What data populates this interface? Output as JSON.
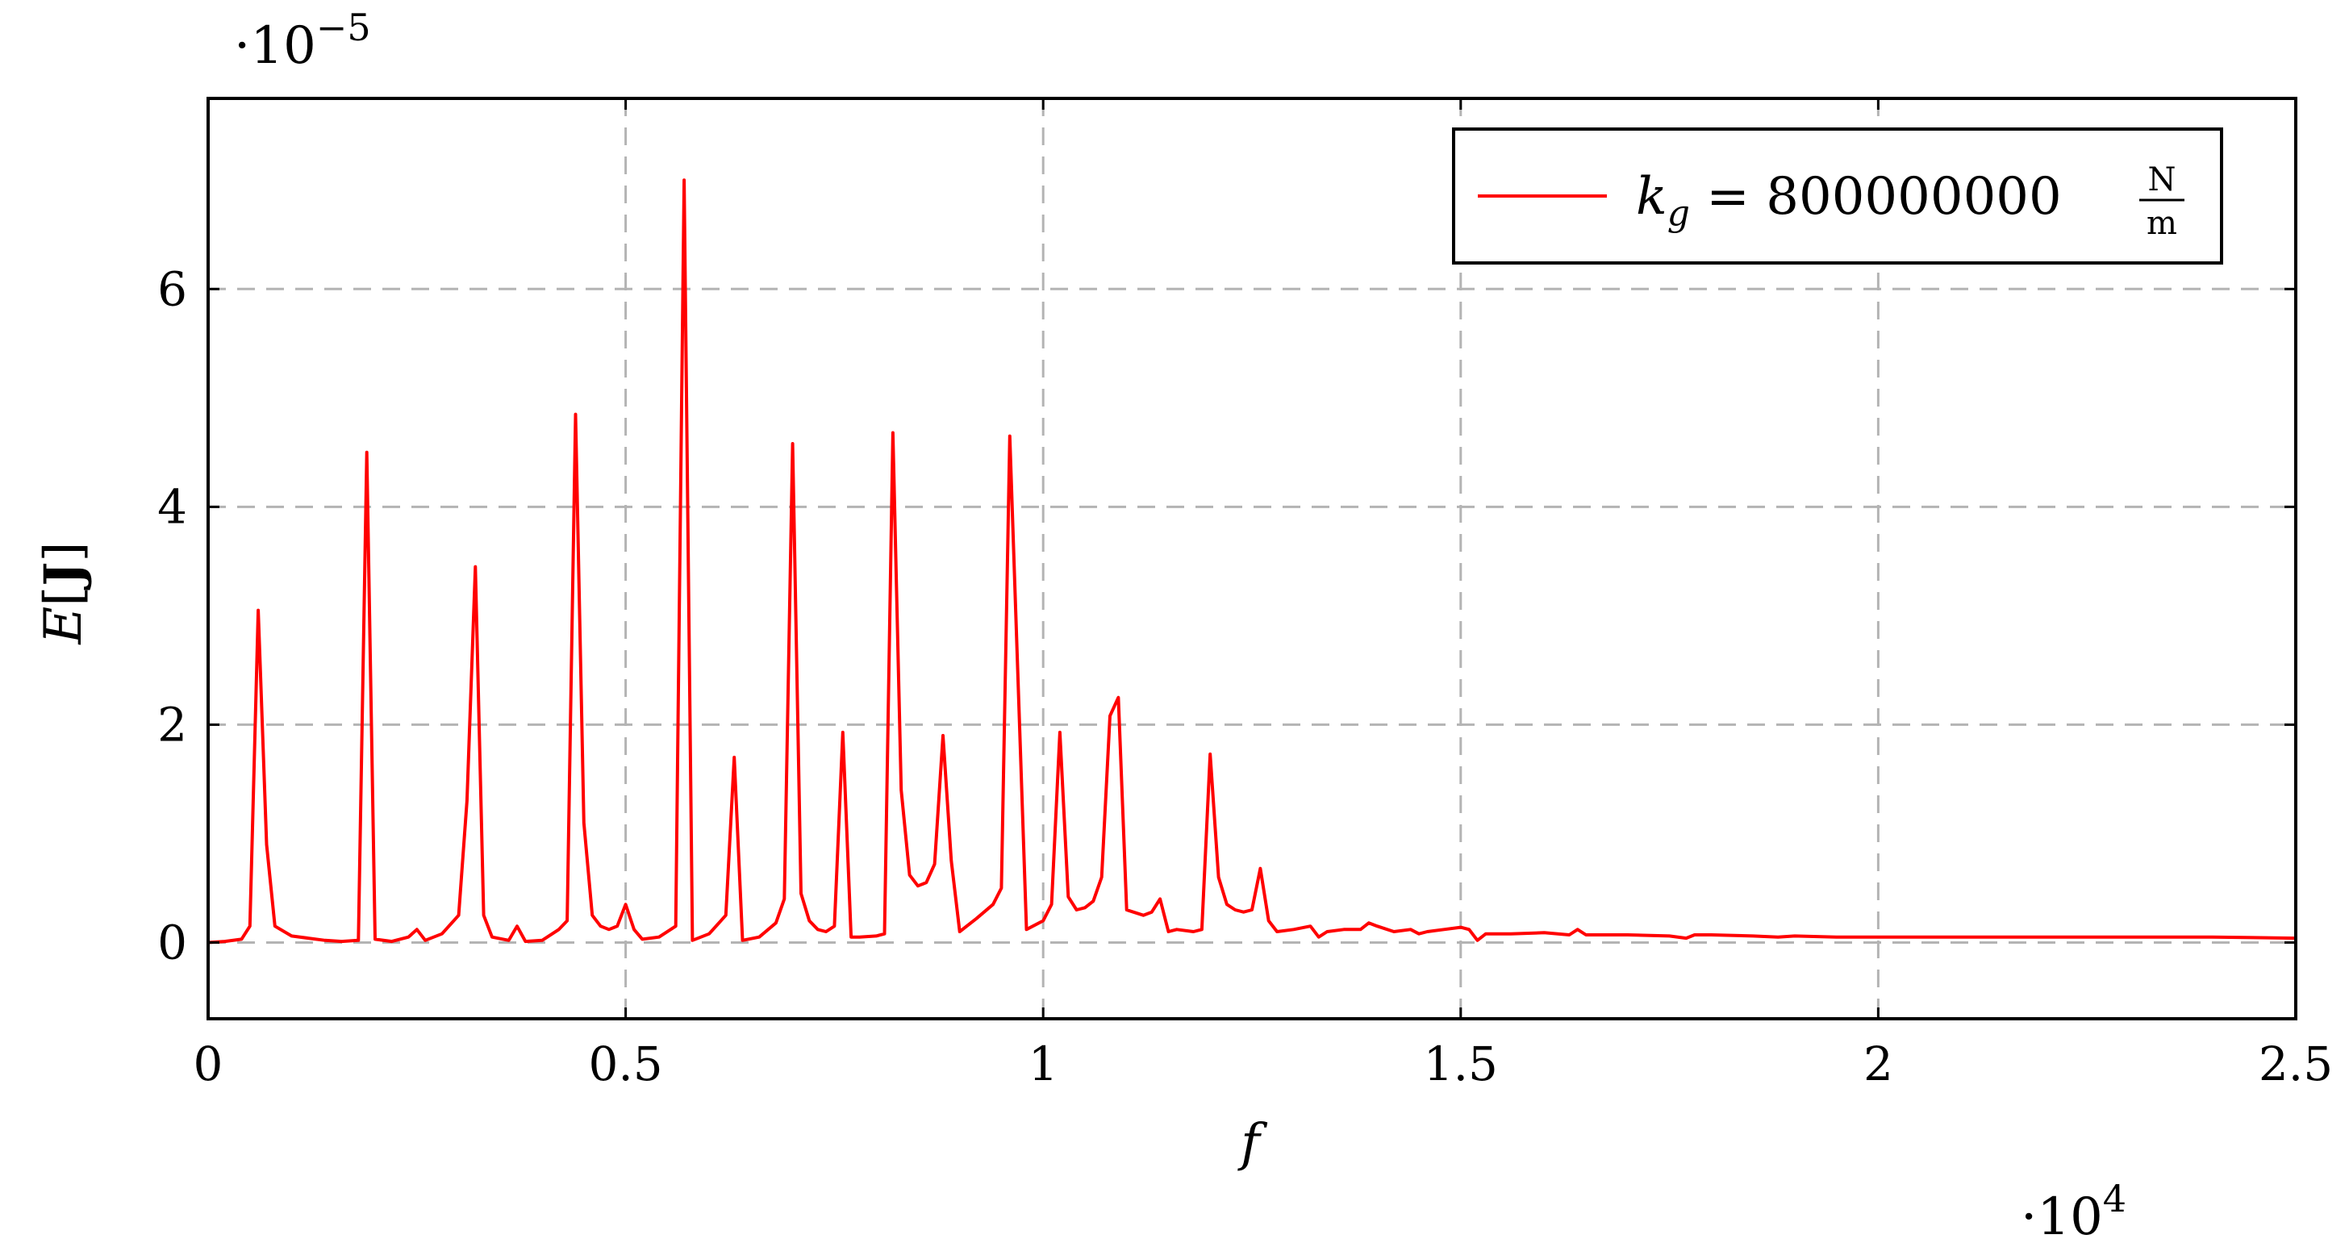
{
  "chart_data": {
    "type": "line",
    "title": "",
    "xlabel": "f",
    "ylabel": "E[J]",
    "x_scale_label": "·10^4",
    "y_scale_label": "·10^−5",
    "xlim": [
      0,
      2.5
    ],
    "ylim": [
      -0.7,
      7.75
    ],
    "x_ticks": [
      0,
      0.5,
      1,
      1.5,
      2,
      2.5
    ],
    "x_tick_labels": [
      "0",
      "0.5",
      "1",
      "1.5",
      "2",
      "2.5"
    ],
    "y_ticks": [
      0,
      2,
      4,
      6
    ],
    "y_tick_labels": [
      "0",
      "2",
      "4",
      "6"
    ],
    "grid": true,
    "legend_position": "top-right",
    "colors": {
      "series": "#ff0000",
      "grid": "#b4b4b4",
      "frame": "#000000"
    },
    "series": [
      {
        "name": "k_g = 800000000 N/m",
        "legend": {
          "lhs": "k",
          "sub": "g",
          "rhs": " = 800000000",
          "num": "N",
          "den": "m"
        },
        "x": [
          0,
          0.02,
          0.04,
          0.05,
          0.06,
          0.07,
          0.08,
          0.1,
          0.12,
          0.14,
          0.16,
          0.18,
          0.19,
          0.2,
          0.22,
          0.24,
          0.25,
          0.26,
          0.28,
          0.3,
          0.31,
          0.32,
          0.33,
          0.34,
          0.36,
          0.37,
          0.38,
          0.4,
          0.42,
          0.43,
          0.44,
          0.45,
          0.46,
          0.47,
          0.48,
          0.49,
          0.5,
          0.51,
          0.52,
          0.54,
          0.56,
          0.57,
          0.58,
          0.6,
          0.62,
          0.63,
          0.64,
          0.66,
          0.68,
          0.69,
          0.7,
          0.71,
          0.72,
          0.73,
          0.74,
          0.75,
          0.76,
          0.77,
          0.78,
          0.8,
          0.81,
          0.82,
          0.83,
          0.84,
          0.85,
          0.86,
          0.87,
          0.88,
          0.89,
          0.9,
          0.92,
          0.94,
          0.95,
          0.96,
          0.98,
          1.0,
          1.01,
          1.02,
          1.03,
          1.04,
          1.05,
          1.06,
          1.07,
          1.08,
          1.09,
          1.1,
          1.12,
          1.13,
          1.14,
          1.15,
          1.16,
          1.18,
          1.19,
          1.2,
          1.21,
          1.22,
          1.23,
          1.24,
          1.25,
          1.26,
          1.27,
          1.28,
          1.3,
          1.32,
          1.33,
          1.34,
          1.36,
          1.38,
          1.39,
          1.4,
          1.42,
          1.44,
          1.45,
          1.46,
          1.48,
          1.5,
          1.51,
          1.52,
          1.53,
          1.56,
          1.6,
          1.63,
          1.64,
          1.65,
          1.7,
          1.75,
          1.77,
          1.78,
          1.8,
          1.85,
          1.88,
          1.9,
          1.95,
          2.0,
          2.05,
          2.1,
          2.2,
          2.3,
          2.4,
          2.5
        ],
        "y": [
          0.0,
          0.01,
          0.03,
          0.15,
          3.05,
          0.9,
          0.15,
          0.06,
          0.04,
          0.02,
          0.01,
          0.02,
          4.5,
          0.03,
          0.01,
          0.05,
          0.12,
          0.02,
          0.08,
          0.25,
          1.3,
          3.45,
          0.25,
          0.05,
          0.02,
          0.15,
          0.01,
          0.02,
          0.12,
          0.2,
          4.85,
          1.1,
          0.25,
          0.15,
          0.12,
          0.15,
          0.35,
          0.12,
          0.03,
          0.05,
          0.15,
          7.0,
          0.02,
          0.08,
          0.25,
          1.7,
          0.02,
          0.05,
          0.18,
          0.4,
          4.58,
          0.45,
          0.2,
          0.12,
          0.1,
          0.15,
          1.93,
          0.05,
          0.05,
          0.06,
          0.08,
          4.68,
          1.4,
          0.62,
          0.52,
          0.55,
          0.72,
          1.9,
          0.75,
          0.1,
          0.22,
          0.35,
          0.5,
          4.65,
          0.12,
          0.2,
          0.35,
          1.93,
          0.42,
          0.3,
          0.32,
          0.38,
          0.6,
          2.08,
          2.25,
          0.3,
          0.25,
          0.28,
          0.4,
          0.1,
          0.12,
          0.1,
          0.12,
          1.73,
          0.6,
          0.35,
          0.3,
          0.28,
          0.3,
          0.68,
          0.2,
          0.1,
          0.12,
          0.15,
          0.05,
          0.1,
          0.12,
          0.12,
          0.18,
          0.15,
          0.1,
          0.12,
          0.08,
          0.1,
          0.12,
          0.14,
          0.12,
          0.02,
          0.08,
          0.08,
          0.09,
          0.07,
          0.12,
          0.07,
          0.07,
          0.06,
          0.04,
          0.07,
          0.07,
          0.06,
          0.05,
          0.06,
          0.05,
          0.05,
          0.05,
          0.05,
          0.05,
          0.05,
          0.05,
          0.04
        ]
      }
    ]
  }
}
